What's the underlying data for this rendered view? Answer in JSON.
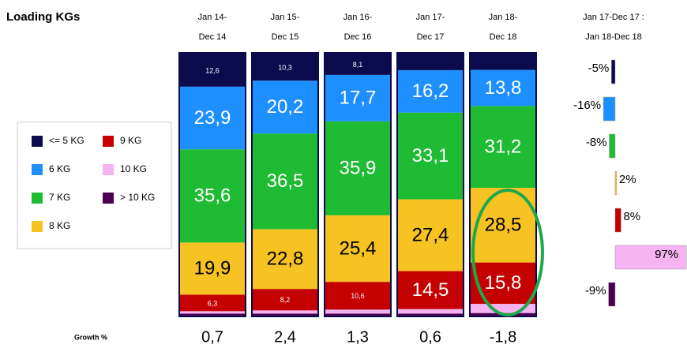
{
  "chart_data": {
    "type": "stacked_bar",
    "title": "Loading KGs",
    "categories": [
      [
        "Jan 14-",
        "Dec 14"
      ],
      [
        "Jan 15-",
        "Dec 15"
      ],
      [
        "Jan 16-",
        "Dec 16"
      ],
      [
        "Jan 17-",
        "Dec 17"
      ],
      [
        "Jan 18-",
        "Dec 18"
      ]
    ],
    "series": [
      {
        "name": "<= 5 KG",
        "color": "#0b0b4d",
        "label_color": "#ffffff",
        "values": [
          12.6,
          10.3,
          8.1,
          6.3,
          6.2
        ],
        "value_labels": [
          "12,6",
          "10,3",
          "8,1",
          null,
          null
        ]
      },
      {
        "name": "6 KG",
        "color": "#1e8fff",
        "label_color": "#ffffff",
        "values": [
          23.9,
          20.2,
          17.7,
          16.2,
          13.8
        ],
        "value_labels": [
          "23,9",
          "20,2",
          "17,7",
          "16,2",
          "13,8"
        ]
      },
      {
        "name": "7 KG",
        "color": "#1fbb32",
        "label_color": "#ffffff",
        "values": [
          35.6,
          36.5,
          35.9,
          33.1,
          31.2
        ],
        "value_labels": [
          "35,6",
          "36,5",
          "35,9",
          "33,1",
          "31,2"
        ]
      },
      {
        "name": "8 KG",
        "color": "#f6c323",
        "label_color": "#000000",
        "values": [
          19.9,
          22.8,
          25.4,
          27.4,
          28.5
        ],
        "value_labels": [
          "19,9",
          "22,8",
          "25,4",
          "27,4",
          "28,5"
        ]
      },
      {
        "name": "9 KG",
        "color": "#c40000",
        "label_color": "#ffffff",
        "values": [
          6.3,
          8.2,
          10.6,
          14.5,
          15.8
        ],
        "value_labels": [
          "6,3",
          "8,2",
          "10,6",
          "14,5",
          "15,8"
        ]
      },
      {
        "name": "10 KG",
        "color": "#f5b3f2",
        "label_color": "#000000",
        "values": [
          0.9,
          1.2,
          1.5,
          1.7,
          3.5
        ],
        "value_labels": [
          null,
          null,
          null,
          null,
          null
        ]
      },
      {
        "name": "> 10 KG",
        "color": "#4d0052",
        "label_color": "#ffffff",
        "values": [
          0.8,
          0.8,
          0.8,
          0.8,
          1.0
        ],
        "value_labels": [
          null,
          null,
          null,
          null,
          null
        ]
      }
    ],
    "ylim": [
      0,
      100
    ],
    "growth_label": "Growth %",
    "growth": [
      "0,7",
      "2,4",
      "1,3",
      "0,6",
      "-1,8"
    ],
    "change_title": [
      "Jan 17-Dec 17 :",
      "Jan 18-Dec 18"
    ],
    "change": {
      "values": [
        -5,
        -16,
        -8,
        2,
        8,
        97,
        -9
      ],
      "value_labels": [
        "-5%",
        "-16%",
        "-8%",
        "2%",
        "8%",
        "97%",
        "-9%"
      ]
    }
  }
}
